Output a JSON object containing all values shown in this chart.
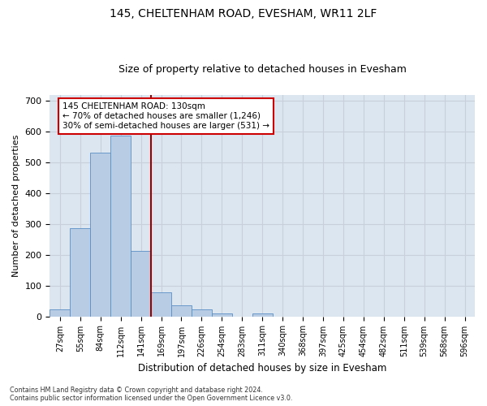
{
  "title1": "145, CHELTENHAM ROAD, EVESHAM, WR11 2LF",
  "title2": "Size of property relative to detached houses in Evesham",
  "xlabel": "Distribution of detached houses by size in Evesham",
  "ylabel": "Number of detached properties",
  "footnote1": "Contains HM Land Registry data © Crown copyright and database right 2024.",
  "footnote2": "Contains public sector information licensed under the Open Government Licence v3.0.",
  "bar_labels": [
    "27sqm",
    "55sqm",
    "84sqm",
    "112sqm",
    "141sqm",
    "169sqm",
    "197sqm",
    "226sqm",
    "254sqm",
    "283sqm",
    "311sqm",
    "340sqm",
    "368sqm",
    "397sqm",
    "425sqm",
    "454sqm",
    "482sqm",
    "511sqm",
    "539sqm",
    "568sqm",
    "596sqm"
  ],
  "bar_values": [
    22,
    287,
    533,
    588,
    212,
    79,
    35,
    22,
    10,
    0,
    10,
    0,
    0,
    0,
    0,
    0,
    0,
    0,
    0,
    0,
    0
  ],
  "bar_color": "#b8cce4",
  "bar_edge_color": "#5b8ec4",
  "grid_color": "#c8d0dc",
  "bg_color": "#dce6f1",
  "vline_color": "#990000",
  "annotation_line1": "145 CHELTENHAM ROAD: 130sqm",
  "annotation_line2": "← 70% of detached houses are smaller (1,246)",
  "annotation_line3": "30% of semi-detached houses are larger (531) →",
  "annotation_box_color": "#cc0000",
  "ylim": [
    0,
    720
  ],
  "yticks": [
    0,
    100,
    200,
    300,
    400,
    500,
    600,
    700
  ]
}
